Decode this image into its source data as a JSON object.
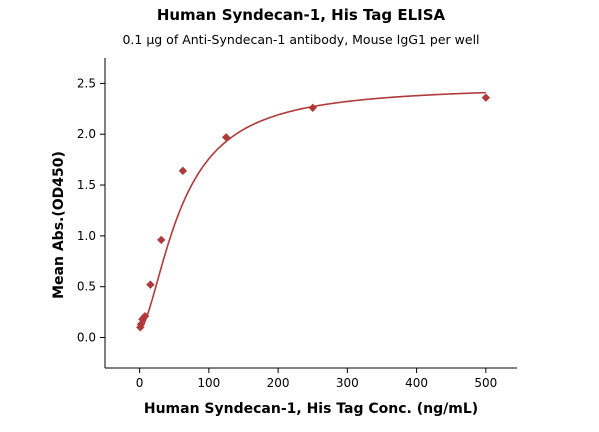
{
  "chart_data": {
    "type": "scatter",
    "title": "Human Syndecan-1, His Tag ELISA",
    "subtitle": "0.1 μg of Anti-Syndecan-1 antibody, Mouse IgG1 per well",
    "xlabel": "Human Syndecan-1, His Tag Conc. (ng/mL)",
    "ylabel": "Mean Abs.(OD450)",
    "xlim": [
      -50,
      545
    ],
    "ylim": [
      -0.3,
      2.75
    ],
    "xticks": [
      0,
      100,
      200,
      300,
      400,
      500
    ],
    "xtick_labels": [
      "0",
      "100",
      "200",
      "300",
      "400",
      "500"
    ],
    "yticks": [
      0.0,
      0.5,
      1.0,
      1.5,
      2.0,
      2.5
    ],
    "ytick_labels": [
      "0.0",
      "0.5",
      "1.0",
      "1.5",
      "2.0",
      "2.5"
    ],
    "grid": false,
    "legend": false,
    "color": "#b03a3a",
    "marker": "diamond",
    "points": {
      "x": [
        0.98,
        1.95,
        3.9,
        7.8,
        15.6,
        31.25,
        62.5,
        125,
        250,
        500
      ],
      "y": [
        0.1,
        0.13,
        0.18,
        0.21,
        0.52,
        0.96,
        1.64,
        1.97,
        2.26,
        2.36
      ]
    },
    "fit_curve": {
      "model": "4PL",
      "A": 0.08,
      "B": 1.65,
      "C": 60,
      "D": 2.48
    }
  }
}
